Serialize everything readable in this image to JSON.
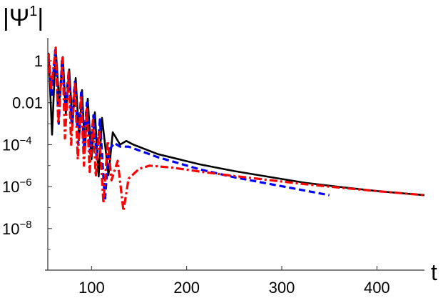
{
  "chart_data": {
    "type": "line",
    "title": "",
    "xlabel": "t",
    "ylabel": "|Ψ¹|",
    "ylabel_parts": {
      "text": "|Ψ",
      "sup": "1",
      "end": "|"
    },
    "xlim": [
      54,
      450
    ],
    "ylim": [
      1e-10,
      12
    ],
    "yscale": "log",
    "grid": false,
    "legend": "none",
    "xticks": [
      100,
      200,
      300,
      400
    ],
    "xtick_labels": [
      "100",
      "200",
      "300",
      "400"
    ],
    "yticks": [
      1,
      0.01,
      0.0001,
      1e-06,
      1e-08
    ],
    "ytick_labels": [
      {
        "text": "1",
        "sup": ""
      },
      {
        "text": "0.01",
        "sup": ""
      },
      {
        "text": "10",
        "sup": "−4"
      },
      {
        "text": "10",
        "sup": "−6"
      },
      {
        "text": "10",
        "sup": "−8"
      }
    ],
    "yminor_ticks": [
      0.1,
      0.001,
      1e-05,
      1e-07,
      1e-09
    ],
    "series": [
      {
        "color": "#000000",
        "style": "solid",
        "points": [
          [
            54,
            0.5
          ],
          [
            54.8,
            2.2
          ],
          [
            58.5,
            0.0003
          ],
          [
            62.3,
            4.1
          ],
          [
            66,
            0.01
          ],
          [
            69.8,
            1.5
          ],
          [
            73,
            0.003
          ],
          [
            76.5,
            0.39
          ],
          [
            80,
            0.001
          ],
          [
            83.3,
            0.15
          ],
          [
            87,
            0.0002
          ],
          [
            90,
            0.04
          ],
          [
            93,
            5e-05
          ],
          [
            96,
            0.0155
          ],
          [
            100,
            2e-05
          ],
          [
            103.5,
            0.0035
          ],
          [
            107.5,
            3e-06
          ],
          [
            111,
            0.0019
          ],
          [
            117.8,
            3.5e-06
          ],
          [
            122.3,
            0.00039
          ],
          [
            130,
            0.0001
          ],
          [
            136.5,
            0.00015
          ],
          [
            144,
            0.0001
          ],
          [
            170,
            3.5e-05
          ],
          [
            213.8,
            1.15e-05
          ],
          [
            250,
            5.5e-06
          ],
          [
            288.8,
            2.8e-06
          ],
          [
            325,
            1.5e-06
          ],
          [
            363.8,
            9.3e-07
          ],
          [
            405,
            5.8e-07
          ],
          [
            450,
            3.9e-07
          ]
        ]
      },
      {
        "color": "#0000ff",
        "style": "dashed",
        "points": [
          [
            54,
            0.3
          ],
          [
            54.5,
            2.0
          ],
          [
            58,
            0.02
          ],
          [
            62,
            4.0
          ],
          [
            65.5,
            0.001
          ],
          [
            69,
            1.3
          ],
          [
            72.5,
            0.005
          ],
          [
            76,
            0.3
          ],
          [
            79,
            0.001
          ],
          [
            82.5,
            0.1
          ],
          [
            86,
            0.0001
          ],
          [
            89,
            0.03
          ],
          [
            92,
            8e-05
          ],
          [
            95,
            0.01
          ],
          [
            98.5,
            4e-05
          ],
          [
            102,
            0.0025
          ],
          [
            105.5,
            2e-05
          ],
          [
            108.8,
            0.0016
          ],
          [
            114,
            2e-07
          ],
          [
            118,
            5e-05
          ],
          [
            123.8,
            0.00012
          ],
          [
            130,
            8e-05
          ],
          [
            139,
            8e-05
          ],
          [
            170,
            2.5e-05
          ],
          [
            213.8,
            6.6e-06
          ],
          [
            250,
            2.8e-06
          ],
          [
            288.8,
            1.3e-06
          ],
          [
            320,
            7e-07
          ],
          [
            350,
            3.9e-07
          ]
        ]
      },
      {
        "color": "#ff0000",
        "style": "dashdot",
        "points": [
          [
            54,
            0.2
          ],
          [
            55,
            2.0
          ],
          [
            57.5,
            0.05
          ],
          [
            62.3,
            4.2
          ],
          [
            65,
            0.001
          ],
          [
            69.5,
            1.4
          ],
          [
            72,
            0.0002
          ],
          [
            76,
            0.3
          ],
          [
            78.5,
            0.0001
          ],
          [
            82.5,
            0.08
          ],
          [
            85.5,
            2e-05
          ],
          [
            89,
            0.02
          ],
          [
            92,
            1e-05
          ],
          [
            95,
            0.006
          ],
          [
            98,
            5e-06
          ],
          [
            101.5,
            0.0015
          ],
          [
            104.5,
            3e-06
          ],
          [
            108,
            0.0005
          ],
          [
            112.5,
            1.6e-07
          ],
          [
            117,
            0.00015
          ],
          [
            121,
            2e-06
          ],
          [
            127.5,
            1.7e-05
          ],
          [
            133.5,
            7e-08
          ],
          [
            139,
            2.4e-06
          ],
          [
            150,
            7e-06
          ],
          [
            161,
            1e-05
          ],
          [
            185,
            8e-06
          ],
          [
            213.8,
            5.2e-06
          ],
          [
            250,
            3.2e-06
          ],
          [
            288.8,
            2e-06
          ],
          [
            325,
            1.3e-06
          ],
          [
            363.8,
            8.7e-07
          ],
          [
            405,
            5.8e-07
          ],
          [
            450,
            3.9e-07
          ]
        ]
      }
    ]
  }
}
